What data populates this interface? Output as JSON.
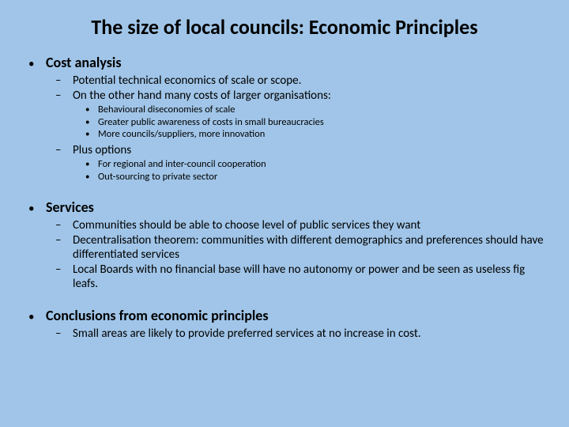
{
  "background_color": "#a0c5e8",
  "text_color": "#000000",
  "title": "The size of local councils: Economic Principles",
  "bullets": [
    {
      "label": "Cost analysis",
      "sub": [
        {
          "label": "Potential technical economics of scale or scope."
        },
        {
          "label": "On the other hand many costs of larger organisations:",
          "sub": [
            {
              "label": "Behavioural diseconomies of scale"
            },
            {
              "label": "Greater public awareness of costs in small bureaucracies"
            },
            {
              "label": "More councils/suppliers, more innovation"
            }
          ]
        },
        {
          "label": "Plus options",
          "sub": [
            {
              "label": "For regional and inter-council cooperation"
            },
            {
              "label": "Out-sourcing to private sector"
            }
          ]
        }
      ]
    },
    {
      "label": "Services",
      "sub": [
        {
          "label": "Communities should be able to choose level of public services they want"
        },
        {
          "label": "Decentralisation theorem:  communities with different demographics and preferences should have differentiated services"
        },
        {
          "label": "Local Boards with no financial base will have no autonomy or power and be seen as useless fig leafs."
        }
      ]
    },
    {
      "label": "Conclusions from economic principles",
      "sub": [
        {
          "label": "Small areas are likely to provide preferred services at no increase in cost."
        }
      ]
    }
  ]
}
